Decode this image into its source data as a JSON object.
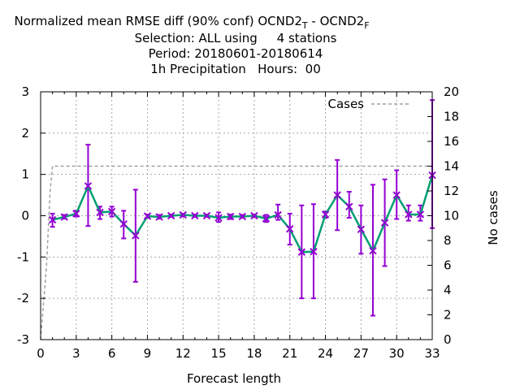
{
  "chart_data": {
    "type": "line",
    "title_lines": [
      "Normalized mean RMSE diff (90% conf) OCND2",
      "Selection: ALL using     4 stations",
      "Period: 20180601-20180614",
      "1h Precipitation   Hours:  00"
    ],
    "title_sub1": "T",
    "title_dash": "  - OCND2",
    "title_sub2": "F",
    "xlabel": "Forecast length",
    "y2label": "No cases",
    "xlim": [
      0,
      33
    ],
    "ylim": [
      -3,
      3
    ],
    "y2lim": [
      0,
      20
    ],
    "xticks": [
      0,
      3,
      6,
      9,
      12,
      15,
      18,
      21,
      24,
      27,
      30,
      33
    ],
    "yticks": [
      -3,
      -2,
      -1,
      0,
      1,
      2,
      3
    ],
    "y2ticks": [
      0,
      2,
      4,
      6,
      8,
      10,
      12,
      14,
      16,
      18,
      20
    ],
    "grid": true,
    "legend": {
      "label": "Cases",
      "placement": "top-right"
    },
    "colors": {
      "series": "#009e73",
      "errorbar": "#9400d3",
      "cases": "#a0a0a0"
    },
    "series": [
      {
        "x": [
          1,
          2,
          3,
          4,
          5,
          6,
          7,
          8,
          9,
          10,
          11,
          12,
          13,
          14,
          15,
          16,
          17,
          18,
          19,
          20,
          21,
          22,
          23,
          24,
          25,
          26,
          27,
          28,
          29,
          30,
          31,
          32,
          33
        ],
        "y": [
          -0.1,
          -0.03,
          0.05,
          0.72,
          0.08,
          0.1,
          -0.2,
          -0.48,
          -0.01,
          -0.03,
          0.0,
          0.02,
          0.0,
          0.0,
          -0.05,
          -0.02,
          -0.02,
          0.0,
          -0.07,
          0.02,
          -0.32,
          -0.88,
          -0.87,
          0.03,
          0.5,
          0.22,
          -0.33,
          -0.85,
          -0.17,
          0.5,
          0.03,
          0.03,
          0.98
        ],
        "low": [
          -0.27,
          -0.07,
          -0.02,
          -0.25,
          -0.08,
          -0.02,
          -0.55,
          -1.6,
          -0.05,
          -0.07,
          -0.03,
          -0.02,
          -0.03,
          -0.03,
          -0.15,
          -0.08,
          -0.05,
          -0.03,
          -0.15,
          -0.1,
          -0.7,
          -2.0,
          -2.0,
          -0.05,
          -0.35,
          -0.05,
          -0.92,
          -2.42,
          -1.22,
          -0.08,
          -0.12,
          -0.12,
          -0.3
        ],
        "high": [
          0.05,
          0.02,
          0.12,
          1.72,
          0.22,
          0.22,
          0.12,
          0.63,
          0.03,
          0.02,
          0.03,
          0.05,
          0.03,
          0.03,
          0.08,
          0.03,
          0.02,
          0.03,
          0.02,
          0.27,
          0.05,
          0.25,
          0.28,
          0.1,
          1.35,
          0.58,
          0.25,
          0.75,
          0.88,
          1.1,
          0.25,
          0.25,
          2.8
        ]
      }
    ],
    "cases": {
      "x": [
        0,
        0.5,
        0.8,
        1,
        33
      ],
      "y": [
        0,
        6,
        12,
        14,
        14
      ]
    }
  }
}
